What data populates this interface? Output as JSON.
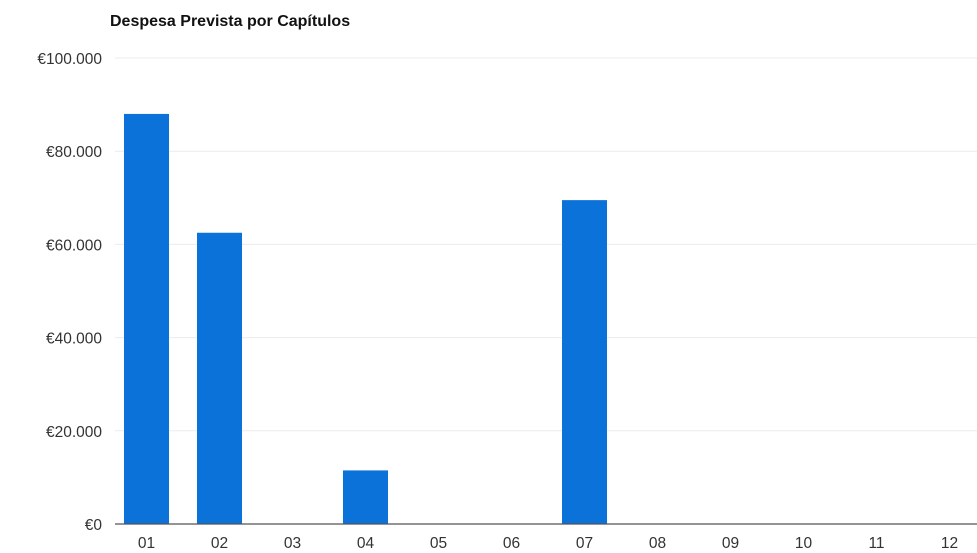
{
  "chart_data": {
    "type": "bar",
    "title": "Despesa Prevista por Capítulos",
    "xlabel": "",
    "ylabel": "",
    "categories": [
      "01",
      "02",
      "03",
      "04",
      "05",
      "06",
      "07",
      "08",
      "09",
      "10",
      "11",
      "12"
    ],
    "values": [
      88000,
      62500,
      0,
      11500,
      0,
      0,
      69500,
      0,
      0,
      0,
      0,
      0
    ],
    "ylim": [
      0,
      100000
    ],
    "y_ticks": [
      0,
      20000,
      40000,
      60000,
      80000,
      100000
    ],
    "y_tick_labels": [
      "€0",
      "€20.000",
      "€40.000",
      "€60.000",
      "€80.000",
      "€100.000"
    ],
    "grid": true,
    "legend": "none",
    "bar_color": "#0a72d8"
  }
}
